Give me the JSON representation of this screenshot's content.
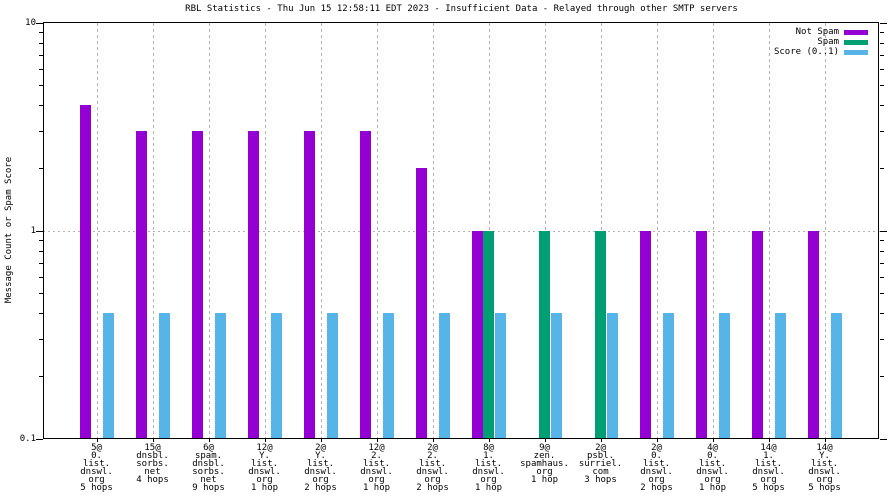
{
  "chart_data": {
    "type": "bar",
    "title": "RBL Statistics - Thu Jun 15 12:58:11 EDT 2023 - Insufficient Data - Relayed through other SMTP servers",
    "ylabel": "Message Count or Spam Score",
    "xlabel": "",
    "y_scale": "log",
    "ylim": [
      0.1,
      10
    ],
    "grid": true,
    "legend_position": "top-right",
    "y_ticks": [
      {
        "label": "10",
        "value": 10
      },
      {
        "label": "1",
        "value": 1
      },
      {
        "label": "0.1",
        "value": 0.1
      }
    ],
    "categories": [
      [
        "5@",
        "0.",
        "list.",
        "dnswl.",
        "org",
        "5 hops"
      ],
      [
        "15@",
        "dnsbl.",
        "sorbs.",
        "net",
        "4 hops"
      ],
      [
        "6@",
        "spam.",
        "dnsbl.",
        "sorbs.",
        "net",
        "9 hops"
      ],
      [
        "12@",
        "Y.",
        "list.",
        "dnswl.",
        "org",
        "1 hop"
      ],
      [
        "2@",
        "Y.",
        "list.",
        "dnswl.",
        "org",
        "2 hops"
      ],
      [
        "12@",
        "2.",
        "list.",
        "dnswl.",
        "org",
        "1 hop"
      ],
      [
        "2@",
        "2.",
        "list.",
        "dnswl.",
        "org",
        "2 hops"
      ],
      [
        "8@",
        "1.",
        "list.",
        "dnswl.",
        "org",
        "1 hop"
      ],
      [
        "9@",
        "zen.",
        "spamhaus.",
        "org",
        "1 hop"
      ],
      [
        "2@",
        "psbl.",
        "surriel.",
        "com",
        "3 hops"
      ],
      [
        "2@",
        "0.",
        "list.",
        "dnswl.",
        "org",
        "2 hops"
      ],
      [
        "4@",
        "0.",
        "list.",
        "dnswl.",
        "org",
        "1 hop"
      ],
      [
        "14@",
        "1.",
        "list.",
        "dnswl.",
        "org",
        "5 hops"
      ],
      [
        "14@",
        "Y.",
        "list.",
        "dnswl.",
        "org",
        "5 hops"
      ]
    ],
    "series": [
      {
        "name": "Not Spam",
        "color": "#9400d3",
        "values": [
          4,
          3,
          3,
          3,
          3,
          3,
          2,
          1,
          null,
          null,
          1,
          1,
          1,
          1
        ]
      },
      {
        "name": "Spam",
        "color": "#009e73",
        "values": [
          null,
          null,
          null,
          null,
          null,
          null,
          null,
          1,
          1,
          1,
          null,
          null,
          null,
          null
        ]
      },
      {
        "name": "Score (0..1)",
        "color": "#56b4e9",
        "values": [
          0.4,
          0.4,
          0.4,
          0.4,
          0.4,
          0.4,
          0.4,
          0.4,
          0.4,
          0.4,
          0.4,
          0.4,
          0.4,
          0.4
        ]
      }
    ],
    "grid_color": "#b3b3b3"
  }
}
